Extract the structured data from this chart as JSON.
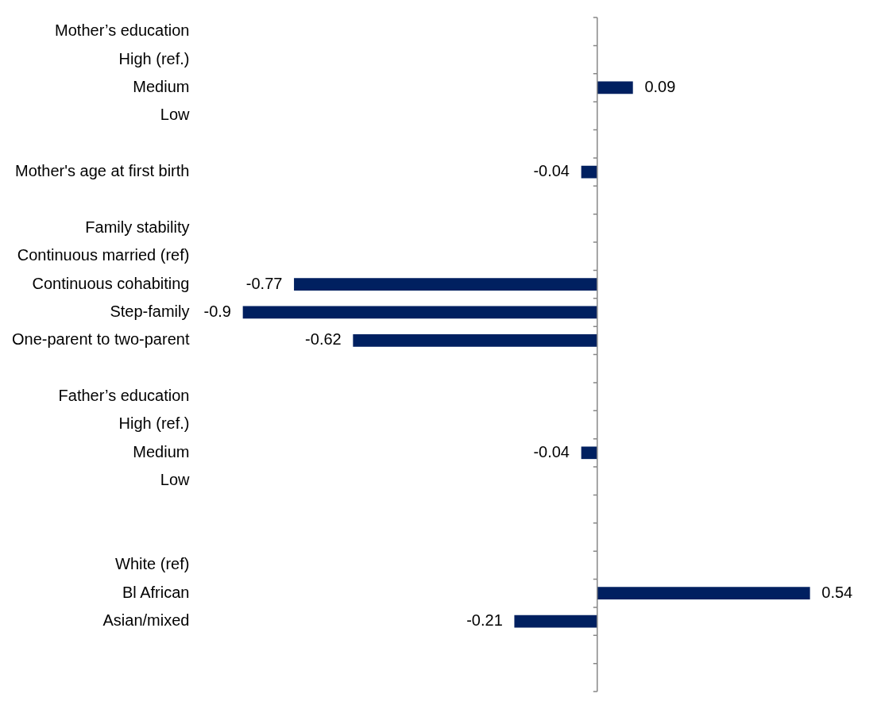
{
  "chart_data": {
    "type": "bar",
    "orientation": "horizontal",
    "categories": [
      "Mother’s education",
      "High (ref.)",
      "Medium",
      "Low",
      null,
      "Mother's age at first birth",
      null,
      "Family stability",
      "Continuous married (ref)",
      "Continuous cohabiting",
      "Step-family",
      "One-parent to two-parent",
      null,
      "Father’s education",
      "High (ref.)",
      "Medium",
      "Low",
      null,
      null,
      "White (ref)",
      "Bl African",
      "Asian/mixed",
      null,
      null
    ],
    "values": [
      null,
      null,
      0.09,
      null,
      null,
      -0.04,
      null,
      null,
      null,
      -0.77,
      -0.9,
      -0.62,
      null,
      null,
      null,
      -0.04,
      null,
      null,
      null,
      null,
      0.54,
      -0.21,
      null,
      null
    ],
    "color": "#002060",
    "data_labels": true,
    "tick_labels": "y",
    "legend": false
  }
}
